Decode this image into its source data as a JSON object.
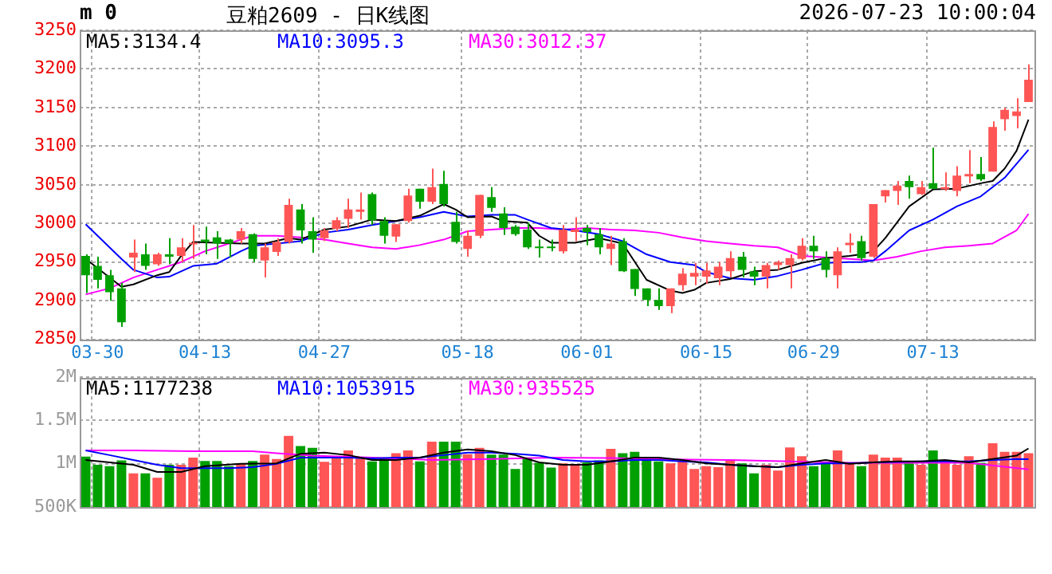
{
  "chart_data": [
    {
      "type": "candlestick",
      "title": "豆粕2609 - 日K线图",
      "subtitle": "2026-07-23 10:00:04",
      "annotations": [
        "m 0"
      ],
      "categories": [
        null,
        "03-30",
        null,
        null,
        null,
        null,
        null,
        null,
        null,
        null,
        "04-13",
        null,
        null,
        null,
        null,
        null,
        null,
        null,
        null,
        null,
        "04-27",
        null,
        null,
        null,
        null,
        null,
        null,
        null,
        null,
        null,
        null,
        null,
        "05-18",
        null,
        null,
        null,
        null,
        null,
        null,
        null,
        null,
        null,
        "06-01",
        null,
        null,
        null,
        null,
        null,
        null,
        null,
        null,
        null,
        "06-15",
        null,
        null,
        null,
        null,
        null,
        null,
        null,
        null,
        "06-29",
        null,
        null,
        null,
        null,
        null,
        null,
        null,
        null,
        null,
        "07-13",
        null,
        null,
        null,
        null,
        null,
        null,
        null,
        null
      ],
      "ohlc": [
        [
          2958,
          2960,
          2910,
          2933
        ],
        [
          2945,
          2957,
          2916,
          2927
        ],
        [
          2933,
          2940,
          2900,
          2911
        ],
        [
          2916,
          2923,
          2866,
          2872
        ],
        [
          2956,
          2979,
          2937,
          2962
        ],
        [
          2960,
          2974,
          2940,
          2945
        ],
        [
          2947,
          2962,
          2945,
          2960
        ],
        [
          2960,
          2981,
          2947,
          2957
        ],
        [
          2958,
          2981,
          2950,
          2969
        ],
        [
          2973,
          2998,
          2954,
          2975
        ],
        [
          2979,
          2996,
          2960,
          2976
        ],
        [
          2982,
          2990,
          2954,
          2974
        ],
        [
          2979,
          2980,
          2956,
          2974
        ],
        [
          2979,
          2994,
          2974,
          2990
        ],
        [
          2986,
          2987,
          2950,
          2954
        ],
        [
          2952,
          2974,
          2930,
          2969
        ],
        [
          2963,
          2981,
          2958,
          2976
        ],
        [
          2976,
          3032,
          2974,
          3024
        ],
        [
          3018,
          3025,
          2974,
          2991
        ],
        [
          2990,
          3008,
          2962,
          2979
        ],
        [
          2981,
          2994,
          2977,
          2991
        ],
        [
          2993,
          3008,
          2990,
          3004
        ],
        [
          3006,
          3032,
          2994,
          3018
        ],
        [
          3015,
          3040,
          3005,
          3018
        ],
        [
          3038,
          3040,
          2998,
          3004
        ],
        [
          3003,
          3008,
          2974,
          2984
        ],
        [
          2983,
          2999,
          2976,
          2999
        ],
        [
          3003,
          3045,
          3001,
          3036
        ],
        [
          3045,
          3045,
          3019,
          3028
        ],
        [
          3028,
          3071,
          3025,
          3047
        ],
        [
          3051,
          3068,
          3022,
          3025
        ],
        [
          3002,
          3015,
          2974,
          2976
        ],
        [
          2967,
          2991,
          2957,
          2984
        ],
        [
          2984,
          3037,
          2981,
          3037
        ],
        [
          3034,
          3047,
          3015,
          3020
        ],
        [
          3013,
          3021,
          2985,
          2994
        ],
        [
          2996,
          2998,
          2984,
          2986
        ],
        [
          2992,
          3001,
          2967,
          2969
        ],
        [
          2969,
          2979,
          2956,
          2968
        ],
        [
          2969,
          2979,
          2964,
          2968
        ],
        [
          2964,
          2998,
          2961,
          2992
        ],
        [
          2989,
          3008,
          2977,
          2992
        ],
        [
          2994,
          2998,
          2972,
          2989
        ],
        [
          2986,
          2994,
          2960,
          2969
        ],
        [
          2967,
          2984,
          2946,
          2974
        ],
        [
          2977,
          2981,
          2937,
          2938
        ],
        [
          2941,
          2941,
          2906,
          2915
        ],
        [
          2916,
          2916,
          2893,
          2901
        ],
        [
          2901,
          2916,
          2888,
          2893
        ],
        [
          2893,
          2916,
          2884,
          2916
        ],
        [
          2920,
          2942,
          2913,
          2935
        ],
        [
          2931,
          2949,
          2920,
          2936
        ],
        [
          2931,
          2949,
          2922,
          2939
        ],
        [
          2929,
          2950,
          2920,
          2944
        ],
        [
          2938,
          2964,
          2930,
          2955
        ],
        [
          2957,
          2963,
          2930,
          2940
        ],
        [
          2938,
          2944,
          2920,
          2931
        ],
        [
          2931,
          2949,
          2916,
          2946
        ],
        [
          2946,
          2952,
          2940,
          2950
        ],
        [
          2946,
          2960,
          2916,
          2955
        ],
        [
          2954,
          2981,
          2952,
          2971
        ],
        [
          2971,
          2984,
          2954,
          2964
        ],
        [
          2955,
          2964,
          2930,
          2940
        ],
        [
          2933,
          2969,
          2916,
          2964
        ],
        [
          2972,
          2987,
          2962,
          2975
        ],
        [
          2977,
          2984,
          2952,
          2955
        ],
        [
          2957,
          3025,
          2955,
          3025
        ],
        [
          3035,
          3043,
          3027,
          3043
        ],
        [
          3042,
          3055,
          3024,
          3049
        ],
        [
          3055,
          3062,
          3032,
          3047
        ],
        [
          3038,
          3055,
          3037,
          3047
        ],
        [
          3052,
          3098,
          3045,
          3045
        ],
        [
          3044,
          3066,
          3042,
          3047
        ],
        [
          3042,
          3074,
          3035,
          3062
        ],
        [
          3061,
          3095,
          3052,
          3064
        ],
        [
          3064,
          3086,
          3055,
          3057
        ],
        [
          3067,
          3132,
          3067,
          3125
        ],
        [
          3135,
          3150,
          3120,
          3147
        ],
        [
          3139,
          3162,
          3123,
          3145
        ],
        [
          3157,
          3206,
          3157,
          3186
        ]
      ],
      "colors": [
        "#00a000",
        "#00a000",
        "#00a000",
        "#00a000",
        "#ff5555",
        "#00a000",
        "#ff5555",
        "#00a000",
        "#ff5555",
        "#ff5555",
        "#00a000",
        "#00a000",
        "#00a000",
        "#ff5555",
        "#00a000",
        "#ff5555",
        "#ff5555",
        "#ff5555",
        "#00a000",
        "#00a000",
        "#ff5555",
        "#ff5555",
        "#ff5555",
        "#ff5555",
        "#00a000",
        "#00a000",
        "#ff5555",
        "#ff5555",
        "#00a000",
        "#ff5555",
        "#00a000",
        "#00a000",
        "#ff5555",
        "#ff5555",
        "#00a000",
        "#00a000",
        "#00a000",
        "#00a000",
        "#00a000",
        "#00a000",
        "#ff5555",
        "#ff5555",
        "#00a000",
        "#00a000",
        "#ff5555",
        "#00a000",
        "#00a000",
        "#00a000",
        "#00a000",
        "#ff5555",
        "#ff5555",
        "#ff5555",
        "#ff5555",
        "#ff5555",
        "#ff5555",
        "#00a000",
        "#00a000",
        "#ff5555",
        "#ff5555",
        "#ff5555",
        "#ff5555",
        "#00a000",
        "#00a000",
        "#ff5555",
        "#ff5555",
        "#00a000",
        "#ff5555",
        "#ff5555",
        "#ff5555",
        "#00a000",
        "#ff5555",
        "#00a000",
        "#ff5555",
        "#ff5555",
        "#ff5555",
        "#00a000",
        "#ff5555",
        "#ff5555",
        "#ff5555",
        "#ff5555"
      ],
      "series": [
        {
          "name": "MA5:3134.4",
          "type": "line",
          "color": "#000000",
          "values": [
            2954,
            null,
            2930,
            2918,
            2921,
            null,
            2933,
            2937,
            2958,
            2976,
            null,
            2975,
            null,
            2974,
            null,
            2974,
            null,
            2981,
            2979,
            null,
            2992,
            null,
            2996,
            null,
            3005,
            null,
            3003,
            null,
            3010,
            null,
            3025,
            3018,
            3008,
            null,
            3009,
            3003,
            null,
            3001,
            2984,
            2975,
            null,
            2975,
            null,
            2981,
            null,
            2974,
            null,
            2927,
            null,
            2913,
            2910,
            2914,
            2923,
            null,
            2928,
            null,
            2938,
            null,
            2940,
            null,
            2949,
            null,
            2955,
            null,
            2958,
            2960,
            2964,
            2981,
            null,
            3022,
            null,
            3044,
            null,
            3045,
            null,
            3052,
            3055,
            3071,
            3094,
            3134.4
          ]
        },
        {
          "name": "MA10:3095.3",
          "type": "line",
          "color": "#0000ff",
          "values": [
            2999,
            2984,
            null,
            2954,
            2940,
            null,
            2930,
            2931,
            null,
            2945,
            null,
            2948,
            null,
            2964,
            2971,
            null,
            2974,
            null,
            2977,
            null,
            2988,
            null,
            2992,
            null,
            2998,
            null,
            3003,
            null,
            3008,
            null,
            3015,
            null,
            3009,
            null,
            3011,
            null,
            3011,
            3005,
            null,
            2994,
            null,
            2991,
            null,
            2986,
            null,
            2977,
            null,
            2960,
            null,
            2950,
            null,
            2946,
            2937,
            null,
            2929,
            null,
            2927,
            null,
            2932,
            null,
            2940,
            null,
            2949,
            null,
            2950,
            2950,
            2952,
            2964,
            null,
            2991,
            null,
            3005,
            null,
            3022,
            null,
            3035,
            null,
            3059,
            null,
            3095.3
          ]
        },
        {
          "name": "MA30:3012.37",
          "type": "line",
          "color": "#ff00ff",
          "values": [
            2908,
            null,
            2916,
            null,
            2930,
            null,
            2940,
            null,
            2950,
            null,
            2964,
            null,
            2974,
            null,
            2984,
            null,
            2984,
            null,
            2982,
            null,
            2979,
            null,
            2974,
            null,
            2969,
            null,
            2967,
            null,
            2972,
            null,
            2979,
            null,
            2990,
            null,
            2992,
            null,
            2994,
            null,
            2994,
            null,
            2992,
            null,
            2994,
            null,
            2992,
            null,
            2991,
            null,
            2988,
            null,
            2982,
            null,
            2977,
            null,
            2974,
            null,
            2971,
            null,
            2969,
            null,
            2958,
            null,
            2956,
            null,
            2954,
            null,
            2952,
            null,
            2957,
            null,
            2964,
            null,
            2969,
            null,
            2971,
            null,
            2974,
            null,
            2991,
            3012.37
          ]
        }
      ],
      "ylim": [
        2850,
        3250
      ],
      "yticks": [
        2850,
        2900,
        2950,
        3000,
        3050,
        3100,
        3150,
        3200,
        3250
      ],
      "grid": true,
      "legend": "top left",
      "marker": "none"
    },
    {
      "type": "bar",
      "categories": [
        null,
        null,
        null,
        null,
        null,
        null,
        null,
        null,
        null,
        null,
        null,
        null,
        null,
        null,
        null,
        null,
        null,
        null,
        null,
        null,
        null,
        null,
        null,
        null,
        null,
        null,
        null,
        null,
        null,
        null,
        null,
        null,
        null,
        null,
        null,
        null,
        null,
        null,
        null,
        null,
        null,
        null,
        null,
        null,
        null,
        null,
        null,
        null,
        null,
        null,
        null,
        null,
        null,
        null,
        null,
        null,
        null,
        null,
        null,
        null,
        null,
        null,
        null,
        null,
        null,
        null,
        null,
        null,
        null,
        null,
        null,
        null,
        null,
        null,
        null,
        null,
        null,
        null,
        null,
        null
      ],
      "values": [
        1083000,
        988000,
        972000,
        1038000,
        889000,
        889000,
        838000,
        988000,
        988000,
        1072000,
        1033000,
        1033000,
        972000,
        1000000,
        1033000,
        1105000,
        1055000,
        1322000,
        1205000,
        1183000,
        1022000,
        1072000,
        1155000,
        1072000,
        1027000,
        1072000,
        1122000,
        1155000,
        1027000,
        1255000,
        1255000,
        1255000,
        1111000,
        1183000,
        1105000,
        1105000,
        939000,
        1066000,
        1011000,
        955000,
        1005000,
        988000,
        1016000,
        1038000,
        1172000,
        1122000,
        1138000,
        1072000,
        1027000,
        1005000,
        1027000,
        939000,
        972000,
        961000,
        1044000,
        1005000,
        889000,
        988000,
        922000,
        1188000,
        1088000,
        972000,
        1005000,
        1155000,
        1005000,
        972000,
        1105000,
        1072000,
        1072000,
        1027000,
        988000,
        1155000,
        1027000,
        988000,
        1088000,
        1011000,
        1238000,
        1138000,
        1138000,
        1122000
      ],
      "colors": [
        "#00a000",
        "#00a000",
        "#00a000",
        "#00a000",
        "#ff5555",
        "#00a000",
        "#ff5555",
        "#00a000",
        "#ff5555",
        "#ff5555",
        "#00a000",
        "#00a000",
        "#00a000",
        "#ff5555",
        "#00a000",
        "#ff5555",
        "#ff5555",
        "#ff5555",
        "#00a000",
        "#00a000",
        "#ff5555",
        "#ff5555",
        "#ff5555",
        "#ff5555",
        "#00a000",
        "#00a000",
        "#ff5555",
        "#ff5555",
        "#00a000",
        "#ff5555",
        "#00a000",
        "#00a000",
        "#ff5555",
        "#ff5555",
        "#00a000",
        "#00a000",
        "#00a000",
        "#00a000",
        "#00a000",
        "#00a000",
        "#ff5555",
        "#ff5555",
        "#00a000",
        "#00a000",
        "#ff5555",
        "#00a000",
        "#00a000",
        "#00a000",
        "#00a000",
        "#ff5555",
        "#ff5555",
        "#ff5555",
        "#ff5555",
        "#ff5555",
        "#ff5555",
        "#00a000",
        "#00a000",
        "#ff5555",
        "#ff5555",
        "#ff5555",
        "#ff5555",
        "#00a000",
        "#00a000",
        "#ff5555",
        "#ff5555",
        "#00a000",
        "#ff5555",
        "#ff5555",
        "#ff5555",
        "#00a000",
        "#ff5555",
        "#00a000",
        "#ff5555",
        "#ff5555",
        "#ff5555",
        "#00a000",
        "#ff5555",
        "#ff5555",
        "#ff5555",
        "#ff5555"
      ],
      "series": [
        {
          "name": "MA5:1177238",
          "type": "line",
          "color": "#000000",
          "values": [
            1044000,
            null,
            null,
            null,
            988000,
            null,
            905000,
            null,
            905000,
            null,
            972000,
            null,
            null,
            1000000,
            null,
            null,
            1005000,
            null,
            1116000,
            null,
            1128000,
            null,
            1100000,
            null,
            1044000,
            null,
            1044000,
            null,
            1072000,
            null,
            1128000,
            null,
            1166000,
            null,
            1144000,
            null,
            1100000,
            null,
            1016000,
            null,
            988000,
            null,
            988000,
            null,
            1027000,
            null,
            1072000,
            null,
            1072000,
            null,
            1044000,
            null,
            1005000,
            null,
            988000,
            null,
            972000,
            null,
            961000,
            null,
            1005000,
            null,
            1044000,
            null,
            1000000,
            null,
            1016000,
            null,
            1027000,
            null,
            1027000,
            null,
            1044000,
            null,
            1016000,
            null,
            1055000,
            null,
            1094000,
            1177238
          ]
        },
        {
          "name": "MA10:1053915",
          "type": "line",
          "color": "#0000ff",
          "values": [
            1155000,
            null,
            1100000,
            null,
            1044000,
            null,
            988000,
            null,
            950000,
            null,
            950000,
            null,
            950000,
            null,
            961000,
            null,
            1000000,
            null,
            1072000,
            null,
            1072000,
            null,
            1072000,
            null,
            1061000,
            null,
            1072000,
            null,
            1072000,
            null,
            1100000,
            null,
            1128000,
            null,
            1128000,
            null,
            1116000,
            null,
            1094000,
            null,
            1044000,
            null,
            1027000,
            null,
            1027000,
            null,
            1044000,
            null,
            1044000,
            null,
            1027000,
            null,
            1016000,
            null,
            988000,
            null,
            972000,
            null,
            961000,
            null,
            988000,
            null,
            1005000,
            null,
            1005000,
            null,
            1016000,
            null,
            null,
            null,
            1027000,
            null,
            1027000,
            null,
            1027000,
            null,
            1044000,
            null,
            1055000,
            1053915
          ]
        },
        {
          "name": "MA30:935525",
          "type": "line",
          "color": "#ff00ff",
          "values": [
            1155000,
            null,
            null,
            null,
            1155000,
            null,
            null,
            null,
            null,
            1144000,
            null,
            null,
            null,
            null,
            1144000,
            null,
            1122000,
            null,
            null,
            1094000,
            null,
            null,
            null,
            null,
            1072000,
            null,
            null,
            null,
            null,
            1044000,
            null,
            null,
            null,
            null,
            1055000,
            null,
            null,
            null,
            null,
            1072000,
            null,
            null,
            null,
            null,
            1066000,
            null,
            null,
            null,
            null,
            1050000,
            null,
            null,
            null,
            null,
            1044000,
            null,
            null,
            null,
            null,
            1027000,
            null,
            null,
            null,
            null,
            1011000,
            null,
            null,
            null,
            null,
            1011000,
            null,
            null,
            null,
            null,
            1011000,
            null,
            null,
            null,
            null,
            935525
          ]
        }
      ],
      "ylim": [
        500000,
        2000000
      ],
      "yticks": [
        {
          "value": 500000,
          "label": "500K"
        },
        {
          "value": 1000000,
          "label": "1M"
        },
        {
          "value": 1500000,
          "label": "1.5M"
        },
        {
          "value": 2000000,
          "label": "2M"
        }
      ],
      "grid": true,
      "legend": "top left",
      "marker": "none",
      "tick_labels": "y"
    }
  ]
}
